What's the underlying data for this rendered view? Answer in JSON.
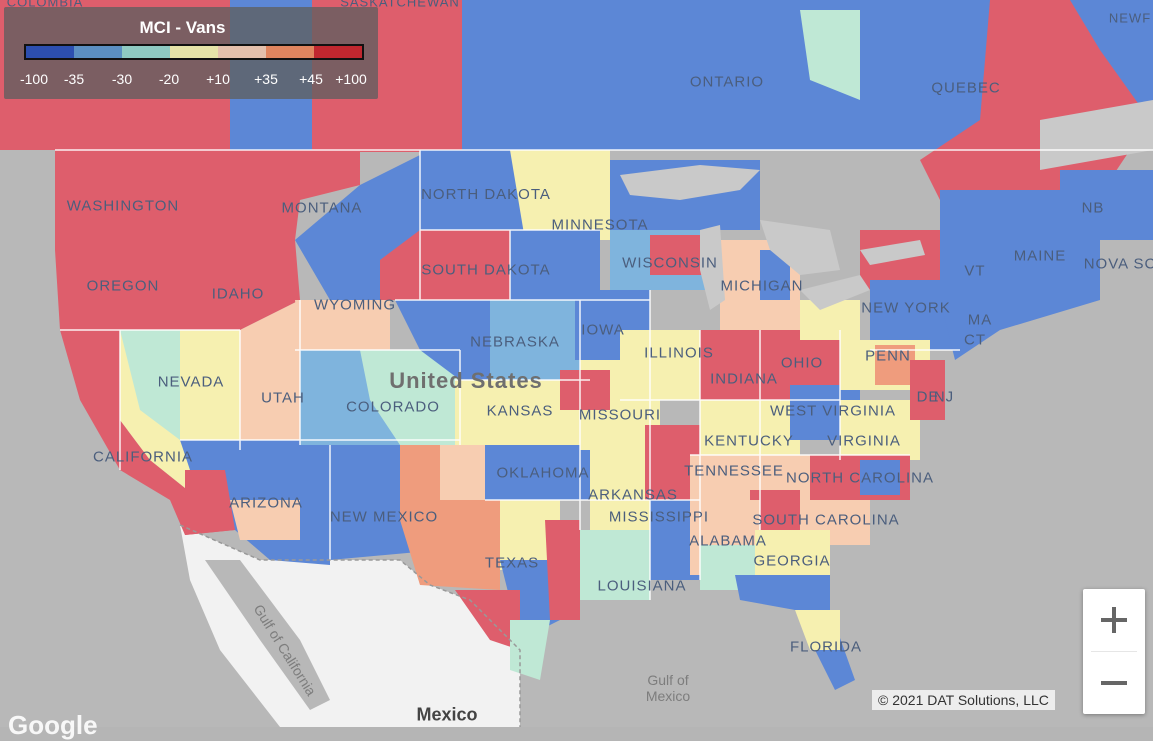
{
  "legend": {
    "title": "MCI - Vans",
    "ticks": [
      "-100",
      "-35",
      "-30",
      "-20",
      "+10",
      "+35",
      "+45",
      "+100"
    ],
    "colors": [
      "#2c4fb0",
      "#5b8fc2",
      "#8fcac2",
      "#e6e3a8",
      "#e4c0ac",
      "#e0855f",
      "#c0272f"
    ]
  },
  "map_colors": {
    "strong_neg": "#5c87d6",
    "neg": "#7fb4dd",
    "mild_neg": "#bfe8d5",
    "neutral": "#f6f0b0",
    "mild_pos": "#f7cdb1",
    "pos": "#ef9c7d",
    "strong_pos": "#de5e6c"
  },
  "labels": {
    "states": [
      "WASHINGTON",
      "OREGON",
      "IDAHO",
      "MONTANA",
      "WYOMING",
      "NORTH DAKOTA",
      "SOUTH DAKOTA",
      "MINNESOTA",
      "WISCONSIN",
      "MICHIGAN",
      "NEBRASKA",
      "IOWA",
      "ILLINOIS",
      "INDIANA",
      "OHIO",
      "PENN",
      "NEW YORK",
      "MAINE",
      "NB",
      "NOVA SC",
      "VT",
      "MA",
      "CT",
      "NJ",
      "DE",
      "NEVADA",
      "UTAH",
      "COLORADO",
      "KANSAS",
      "MISSOURI",
      "KENTUCKY",
      "WEST VIRGINIA",
      "VIRGINIA",
      "CALIFORNIA",
      "ARIZONA",
      "NEW MEXICO",
      "OKLAHOMA",
      "TENNESSEE",
      "NORTH CAROLINA",
      "SOUTH CAROLINA",
      "ARKANSAS",
      "MISSISSIPPI",
      "ALABAMA",
      "GEORGIA",
      "TEXAS",
      "LOUISIANA",
      "FLORIDA",
      "ONTARIO",
      "QUEBEC"
    ],
    "country": "United States",
    "gulf_ca": "Gulf of California",
    "gulf_mx": "Gulf of Mexico",
    "mexico": "Mexico",
    "top_labels": [
      "COLOMBIA",
      "SASKATCHEWAN",
      "NEWF"
    ]
  },
  "controls": {
    "zoom_in": "+",
    "zoom_out": "−"
  },
  "copyright": "© 2021 DAT Solutions, LLC",
  "logo": "Google"
}
